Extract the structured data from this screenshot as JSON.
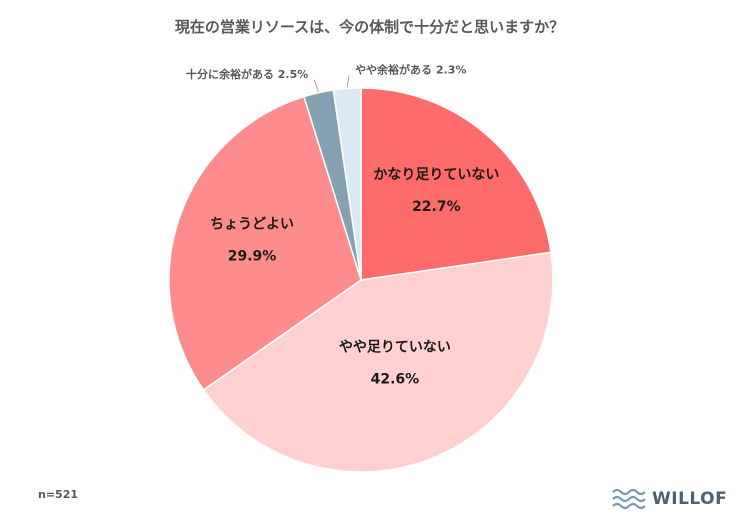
{
  "title": "現在の営業リソースは、今の体制で十分だと思いますか？",
  "sample_size": "n=521",
  "brand": "WILLOF",
  "colors": {
    "brand_text": "#4a6272",
    "brand_wave": "#7a9aab"
  },
  "chart_data": {
    "type": "pie",
    "title": "現在の営業リソースは、今の体制で十分だと思いますか？",
    "start_angle_deg": 0,
    "direction": "clockwise",
    "slices": [
      {
        "label": "かなり足りていない",
        "value": 22.7,
        "value_label": "22.7%",
        "color": "#fe6b6b",
        "label_position": "inside"
      },
      {
        "label": "やや足りていない",
        "value": 42.6,
        "value_label": "42.6%",
        "color": "#ffd0d0",
        "label_position": "inside"
      },
      {
        "label": "ちょうどよい",
        "value": 29.9,
        "value_label": "29.9%",
        "color": "#fe8c8c",
        "label_position": "inside"
      },
      {
        "label": "十分に余裕がある",
        "value": 2.5,
        "value_label": "2.5%",
        "color": "#84a0b1",
        "label_position": "outside"
      },
      {
        "label": "やや余裕がある",
        "value": 2.3,
        "value_label": "2.3%",
        "color": "#dce8f4",
        "label_position": "outside"
      }
    ]
  }
}
